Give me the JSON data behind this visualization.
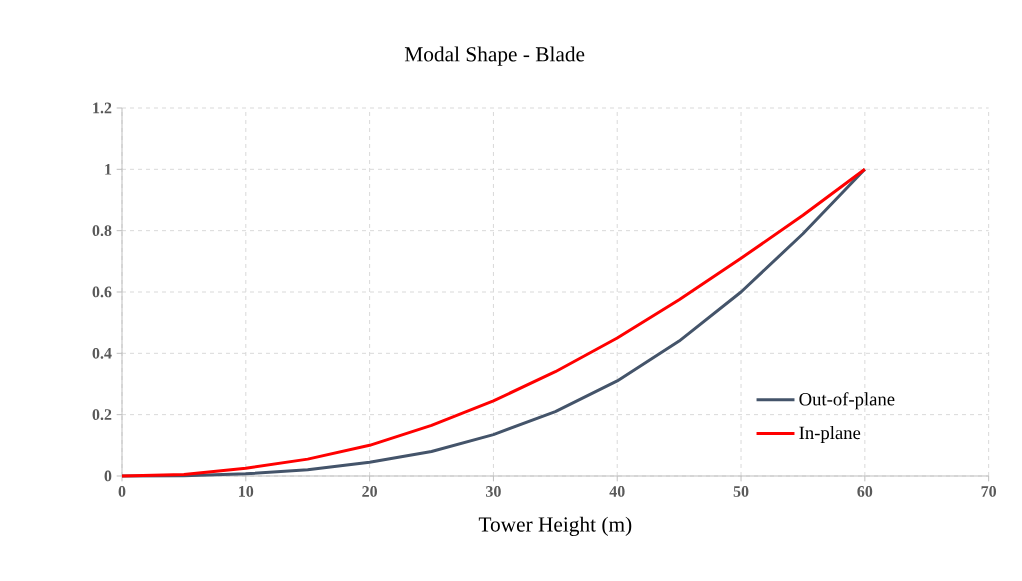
{
  "chart_data": {
    "type": "line",
    "title": "Modal Shape - Blade",
    "xlabel": "Tower Height (m)",
    "xlim": [
      0,
      70
    ],
    "xticks": [
      0,
      10,
      20,
      30,
      40,
      50,
      60,
      70
    ],
    "ylim": [
      0,
      1.2
    ],
    "yticks": [
      {
        "value": 0,
        "label": "0"
      },
      {
        "value": 0.2,
        "label": "0.2"
      },
      {
        "value": 0.4,
        "label": "0.4"
      },
      {
        "value": 0.6,
        "label": "0.6"
      },
      {
        "value": 0.8,
        "label": "0.8"
      },
      {
        "value": 1,
        "label": "1"
      },
      {
        "value": 1.2,
        "label": "1.2"
      }
    ],
    "grid": true,
    "legend": "bottom right",
    "marker": "none",
    "line_style": "solid",
    "series": [
      {
        "name": "Out-of-plane",
        "color": "#44546a",
        "x": [
          0,
          5,
          10,
          15,
          20,
          25,
          30,
          35,
          40,
          45,
          50,
          55,
          60
        ],
        "values": [
          0,
          0.001,
          0.007,
          0.02,
          0.045,
          0.08,
          0.135,
          0.21,
          0.31,
          0.44,
          0.6,
          0.79,
          1
        ]
      },
      {
        "name": "In-plane",
        "color": "#ff0000",
        "x": [
          0,
          5,
          10,
          15,
          20,
          25,
          30,
          35,
          40,
          45,
          50,
          55,
          60
        ],
        "values": [
          0,
          0.005,
          0.025,
          0.055,
          0.1,
          0.165,
          0.245,
          0.34,
          0.45,
          0.575,
          0.71,
          0.85,
          1
        ]
      }
    ]
  }
}
